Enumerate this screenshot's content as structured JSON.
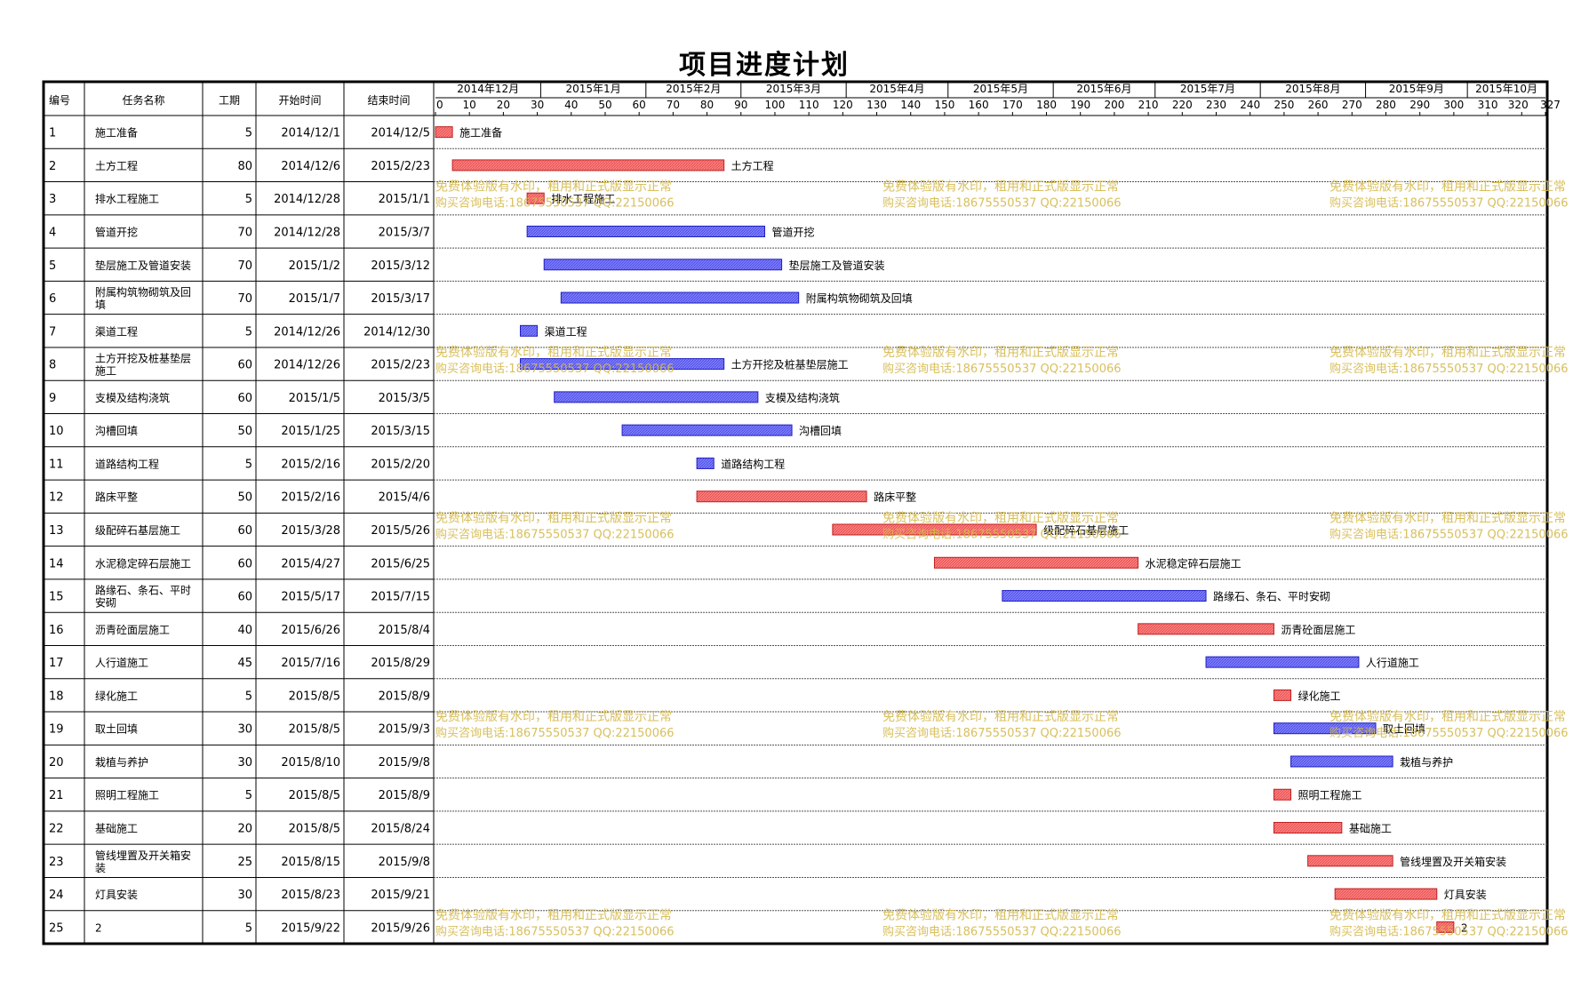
{
  "title": "项目进度计划",
  "columns": {
    "no": "编号",
    "name": "任务名称",
    "duration": "工期",
    "start": "开始时间",
    "end": "结束时间"
  },
  "months": [
    "2014年12月",
    "2015年1月",
    "2015年2月",
    "2015年3月",
    "2015年4月",
    "2015年5月",
    "2015年6月",
    "2015年7月",
    "2015年8月",
    "2015年9月",
    "2015年10月"
  ],
  "watermark": {
    "line1": "免费体验版有水印，租用和正式版显示正常",
    "line2": "购买咨询电话:18675550537 QQ:22150066"
  },
  "colors": {
    "red": "#ff7b7b",
    "blue": "#7b7bff",
    "watermark": "#d4b84a",
    "grid": "#000000"
  },
  "chart_data": {
    "type": "gantt",
    "x_axis": {
      "unit": "day",
      "min": 0,
      "max": 327,
      "ticks": [
        0,
        10,
        20,
        30,
        40,
        50,
        60,
        70,
        80,
        90,
        100,
        110,
        120,
        130,
        140,
        150,
        160,
        170,
        180,
        190,
        200,
        210,
        220,
        230,
        240,
        250,
        260,
        270,
        280,
        290,
        300,
        310,
        320,
        327
      ]
    },
    "tasks": [
      {
        "no": "1",
        "name": "施工准备",
        "duration": 5,
        "start": "2014/12/1",
        "end": "2014/12/5",
        "offset": 0,
        "color": "red"
      },
      {
        "no": "2",
        "name": "土方工程",
        "duration": 80,
        "start": "2014/12/6",
        "end": "2015/2/23",
        "offset": 5,
        "color": "red"
      },
      {
        "no": "3",
        "name": "排水工程施工",
        "duration": 5,
        "start": "2014/12/28",
        "end": "2015/1/1",
        "offset": 27,
        "color": "red"
      },
      {
        "no": "4",
        "name": "管道开挖",
        "duration": 70,
        "start": "2014/12/28",
        "end": "2015/3/7",
        "offset": 27,
        "color": "blue"
      },
      {
        "no": "5",
        "name": "垫层施工及管道安装",
        "duration": 70,
        "start": "2015/1/2",
        "end": "2015/3/12",
        "offset": 32,
        "color": "blue"
      },
      {
        "no": "6",
        "name": "附属构筑物砌筑及回填",
        "duration": 70,
        "start": "2015/1/7",
        "end": "2015/3/17",
        "offset": 37,
        "color": "blue"
      },
      {
        "no": "7",
        "name": "渠道工程",
        "duration": 5,
        "start": "2014/12/26",
        "end": "2014/12/30",
        "offset": 25,
        "color": "blue"
      },
      {
        "no": "8",
        "name": "土方开挖及桩基垫层施工",
        "duration": 60,
        "start": "2014/12/26",
        "end": "2015/2/23",
        "offset": 25,
        "color": "blue"
      },
      {
        "no": "9",
        "name": "支模及结构浇筑",
        "duration": 60,
        "start": "2015/1/5",
        "end": "2015/3/5",
        "offset": 35,
        "color": "blue"
      },
      {
        "no": "10",
        "name": "沟槽回填",
        "duration": 50,
        "start": "2015/1/25",
        "end": "2015/3/15",
        "offset": 55,
        "color": "blue"
      },
      {
        "no": "11",
        "name": "道路结构工程",
        "duration": 5,
        "start": "2015/2/16",
        "end": "2015/2/20",
        "offset": 77,
        "color": "blue"
      },
      {
        "no": "12",
        "name": "路床平整",
        "duration": 50,
        "start": "2015/2/16",
        "end": "2015/4/6",
        "offset": 77,
        "color": "red"
      },
      {
        "no": "13",
        "name": "级配碎石基层施工",
        "duration": 60,
        "start": "2015/3/28",
        "end": "2015/5/26",
        "offset": 117,
        "color": "red"
      },
      {
        "no": "14",
        "name": "水泥稳定碎石层施工",
        "duration": 60,
        "start": "2015/4/27",
        "end": "2015/6/25",
        "offset": 147,
        "color": "red"
      },
      {
        "no": "15",
        "name": "路缘石、条石、平时安砌",
        "duration": 60,
        "start": "2015/5/17",
        "end": "2015/7/15",
        "offset": 167,
        "color": "blue"
      },
      {
        "no": "16",
        "name": "沥青砼面层施工",
        "duration": 40,
        "start": "2015/6/26",
        "end": "2015/8/4",
        "offset": 207,
        "color": "red"
      },
      {
        "no": "17",
        "name": "人行道施工",
        "duration": 45,
        "start": "2015/7/16",
        "end": "2015/8/29",
        "offset": 227,
        "color": "blue"
      },
      {
        "no": "18",
        "name": "绿化施工",
        "duration": 5,
        "start": "2015/8/5",
        "end": "2015/8/9",
        "offset": 247,
        "color": "red"
      },
      {
        "no": "19",
        "name": "取土回填",
        "duration": 30,
        "start": "2015/8/5",
        "end": "2015/9/3",
        "offset": 247,
        "color": "blue"
      },
      {
        "no": "20",
        "name": "栽植与养护",
        "duration": 30,
        "start": "2015/8/10",
        "end": "2015/9/8",
        "offset": 252,
        "color": "blue"
      },
      {
        "no": "21",
        "name": "照明工程施工",
        "duration": 5,
        "start": "2015/8/5",
        "end": "2015/8/9",
        "offset": 247,
        "color": "red"
      },
      {
        "no": "22",
        "name": "基础施工",
        "duration": 20,
        "start": "2015/8/5",
        "end": "2015/8/24",
        "offset": 247,
        "color": "red"
      },
      {
        "no": "23",
        "name": "管线埋置及开关箱安装",
        "duration": 25,
        "start": "2015/8/15",
        "end": "2015/9/8",
        "offset": 257,
        "color": "red"
      },
      {
        "no": "24",
        "name": "灯具安装",
        "duration": 30,
        "start": "2015/8/23",
        "end": "2015/9/21",
        "offset": 265,
        "color": "red"
      },
      {
        "no": "25",
        "name": "2",
        "duration": 5,
        "start": "2015/9/22",
        "end": "2015/9/26",
        "offset": 295,
        "color": "red"
      }
    ]
  }
}
